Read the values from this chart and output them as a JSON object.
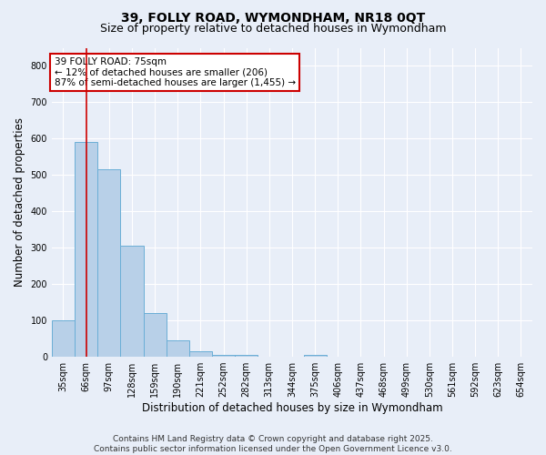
{
  "title1": "39, FOLLY ROAD, WYMONDHAM, NR18 0QT",
  "title2": "Size of property relative to detached houses in Wymondham",
  "xlabel": "Distribution of detached houses by size in Wymondham",
  "ylabel": "Number of detached properties",
  "categories": [
    "35sqm",
    "66sqm",
    "97sqm",
    "128sqm",
    "159sqm",
    "190sqm",
    "221sqm",
    "252sqm",
    "282sqm",
    "313sqm",
    "344sqm",
    "375sqm",
    "406sqm",
    "437sqm",
    "468sqm",
    "499sqm",
    "530sqm",
    "561sqm",
    "592sqm",
    "623sqm",
    "654sqm"
  ],
  "values": [
    100,
    590,
    515,
    305,
    120,
    45,
    15,
    5,
    5,
    0,
    0,
    5,
    0,
    0,
    0,
    0,
    0,
    0,
    0,
    0,
    0
  ],
  "bar_color": "#b8d0e8",
  "bar_edge_color": "#6aaed6",
  "vline_x_index": 1.0,
  "vline_color": "#cc0000",
  "annotation_title": "39 FOLLY ROAD: 75sqm",
  "annotation_line1": "← 12% of detached houses are smaller (206)",
  "annotation_line2": "87% of semi-detached houses are larger (1,455) →",
  "annotation_box_color": "#ffffff",
  "annotation_border_color": "#cc0000",
  "ylim": [
    0,
    850
  ],
  "yticks": [
    0,
    100,
    200,
    300,
    400,
    500,
    600,
    700,
    800
  ],
  "footnote1": "Contains HM Land Registry data © Crown copyright and database right 2025.",
  "footnote2": "Contains public sector information licensed under the Open Government Licence v3.0.",
  "background_color": "#e8eef8",
  "plot_bg_color": "#e8eef8",
  "grid_color": "#ffffff",
  "title_fontsize": 10,
  "subtitle_fontsize": 9,
  "tick_fontsize": 7,
  "label_fontsize": 8.5,
  "footnote_fontsize": 6.5,
  "annotation_fontsize": 7.5
}
